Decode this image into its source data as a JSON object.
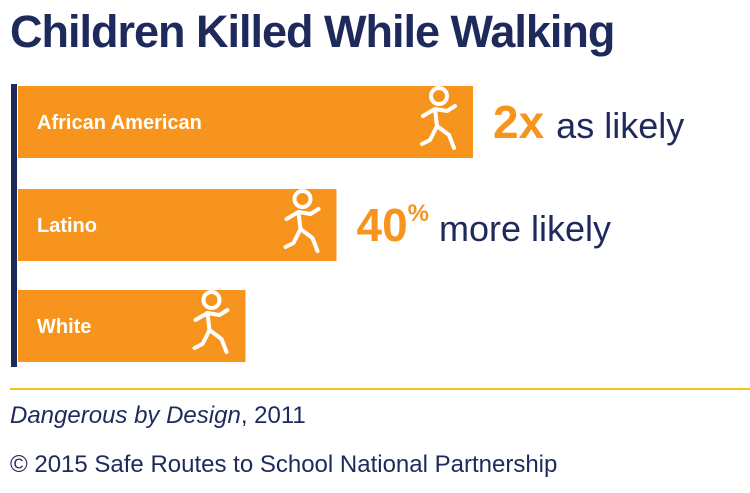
{
  "chart_data": {
    "type": "bar",
    "orientation": "horizontal",
    "title": "Children Killed While Walking",
    "categories": [
      "African American",
      "Latino",
      "White"
    ],
    "values": [
      2,
      1.4,
      1
    ],
    "annotations": [
      {
        "category": "African American",
        "big": "2x",
        "sup": "",
        "rest": "as likely"
      },
      {
        "category": "Latino",
        "big": "40",
        "sup": "%",
        "rest": "more likely"
      },
      {
        "category": "White",
        "big": "",
        "sup": "",
        "rest": ""
      }
    ],
    "icon": "walking-child-icon",
    "colors": {
      "bar": "#f7941d",
      "axis": "#1f2a5c",
      "accent": "#f7941d",
      "text": "#1f2a5c",
      "rule": "#f5c518"
    }
  },
  "source": {
    "publication": "Dangerous by Design",
    "year_suffix": ", 2011"
  },
  "copyright": "© 2015 Safe Routes to School National Partnership"
}
